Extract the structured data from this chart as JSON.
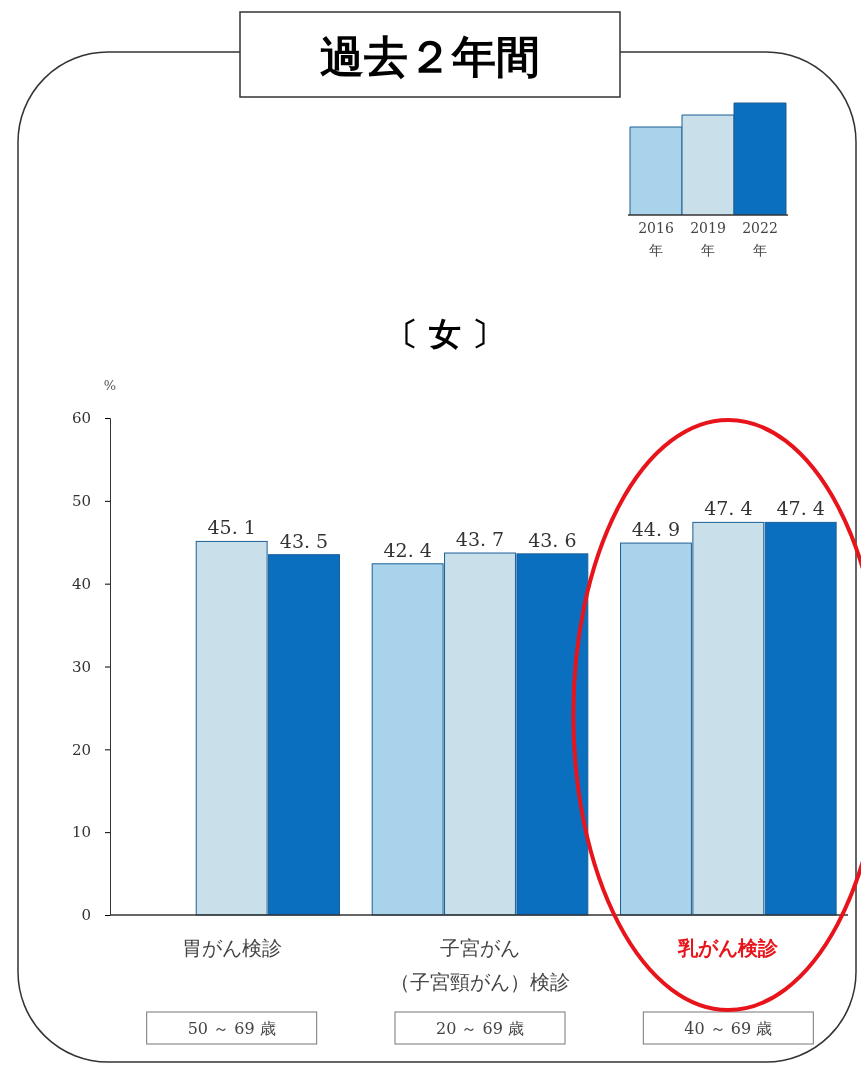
{
  "chart_data": {
    "type": "bar",
    "title": "過去２年間",
    "subtitle": "〔 女 〕",
    "ylabel": "%",
    "categories": [
      "胃がん検診",
      "子宮がん（子宮頸がん）検診",
      "乳がん検診"
    ],
    "series": [
      {
        "name": "2016年",
        "color": "#a9d3ea",
        "values": [
          null,
          42.4,
          44.9
        ]
      },
      {
        "name": "2019年",
        "color": "#c9dfea",
        "values": [
          45.1,
          43.7,
          47.4
        ]
      },
      {
        "name": "2022年",
        "color": "#0a6fbf",
        "values": [
          43.5,
          43.6,
          47.4
        ]
      }
    ],
    "ylim": [
      0,
      60
    ],
    "yticks": [
      0,
      10,
      20,
      30,
      40,
      50,
      60
    ],
    "grid": false,
    "legend": "top right",
    "data_labels": true,
    "annotations": [
      "50 ～ 69 歳",
      "20 ～ 69 歳",
      "40 ～ 69 歳"
    ]
  }
}
